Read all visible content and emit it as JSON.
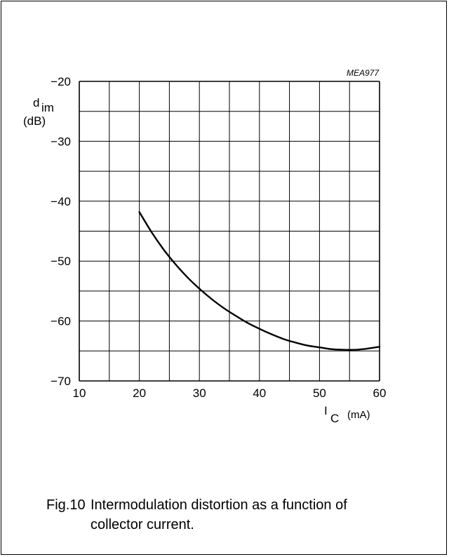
{
  "chart_data": {
    "type": "line",
    "figure_code": "MEA977",
    "ylabel_main": "d",
    "ylabel_sub": "im",
    "ylabel_unit": "(dB)",
    "xlabel_main": "I",
    "xlabel_sub": "C",
    "xlabel_unit": "(mA)",
    "xlim": [
      10,
      60
    ],
    "ylim": [
      -70,
      -20
    ],
    "x_major_ticks": [
      10,
      20,
      30,
      40,
      50,
      60
    ],
    "y_major_ticks": [
      -70,
      -60,
      -50,
      -40,
      -30,
      -20
    ],
    "x_tick_labels": [
      "10",
      "20",
      "30",
      "40",
      "50",
      "60"
    ],
    "y_tick_labels": [
      "−70",
      "−60",
      "−50",
      "−40",
      "−30",
      "−20"
    ],
    "x_grid_step": 5,
    "y_grid_step": 5,
    "grid": true,
    "series": [
      {
        "x": [
          20,
          22,
          24,
          26,
          28,
          30,
          32,
          34,
          36,
          38,
          40,
          42,
          44,
          46,
          48,
          50,
          52,
          54,
          56,
          58,
          60
        ],
        "y": [
          -41.8,
          -45.1,
          -48.0,
          -50.5,
          -52.7,
          -54.6,
          -56.3,
          -57.8,
          -59.1,
          -60.3,
          -61.3,
          -62.2,
          -63.0,
          -63.6,
          -64.1,
          -64.4,
          -64.7,
          -64.8,
          -64.8,
          -64.6,
          -64.3
        ]
      }
    ]
  },
  "caption": {
    "figure_number": "Fig.10",
    "line1": "Intermodulation distortion as a function of",
    "line2": "collector current."
  }
}
